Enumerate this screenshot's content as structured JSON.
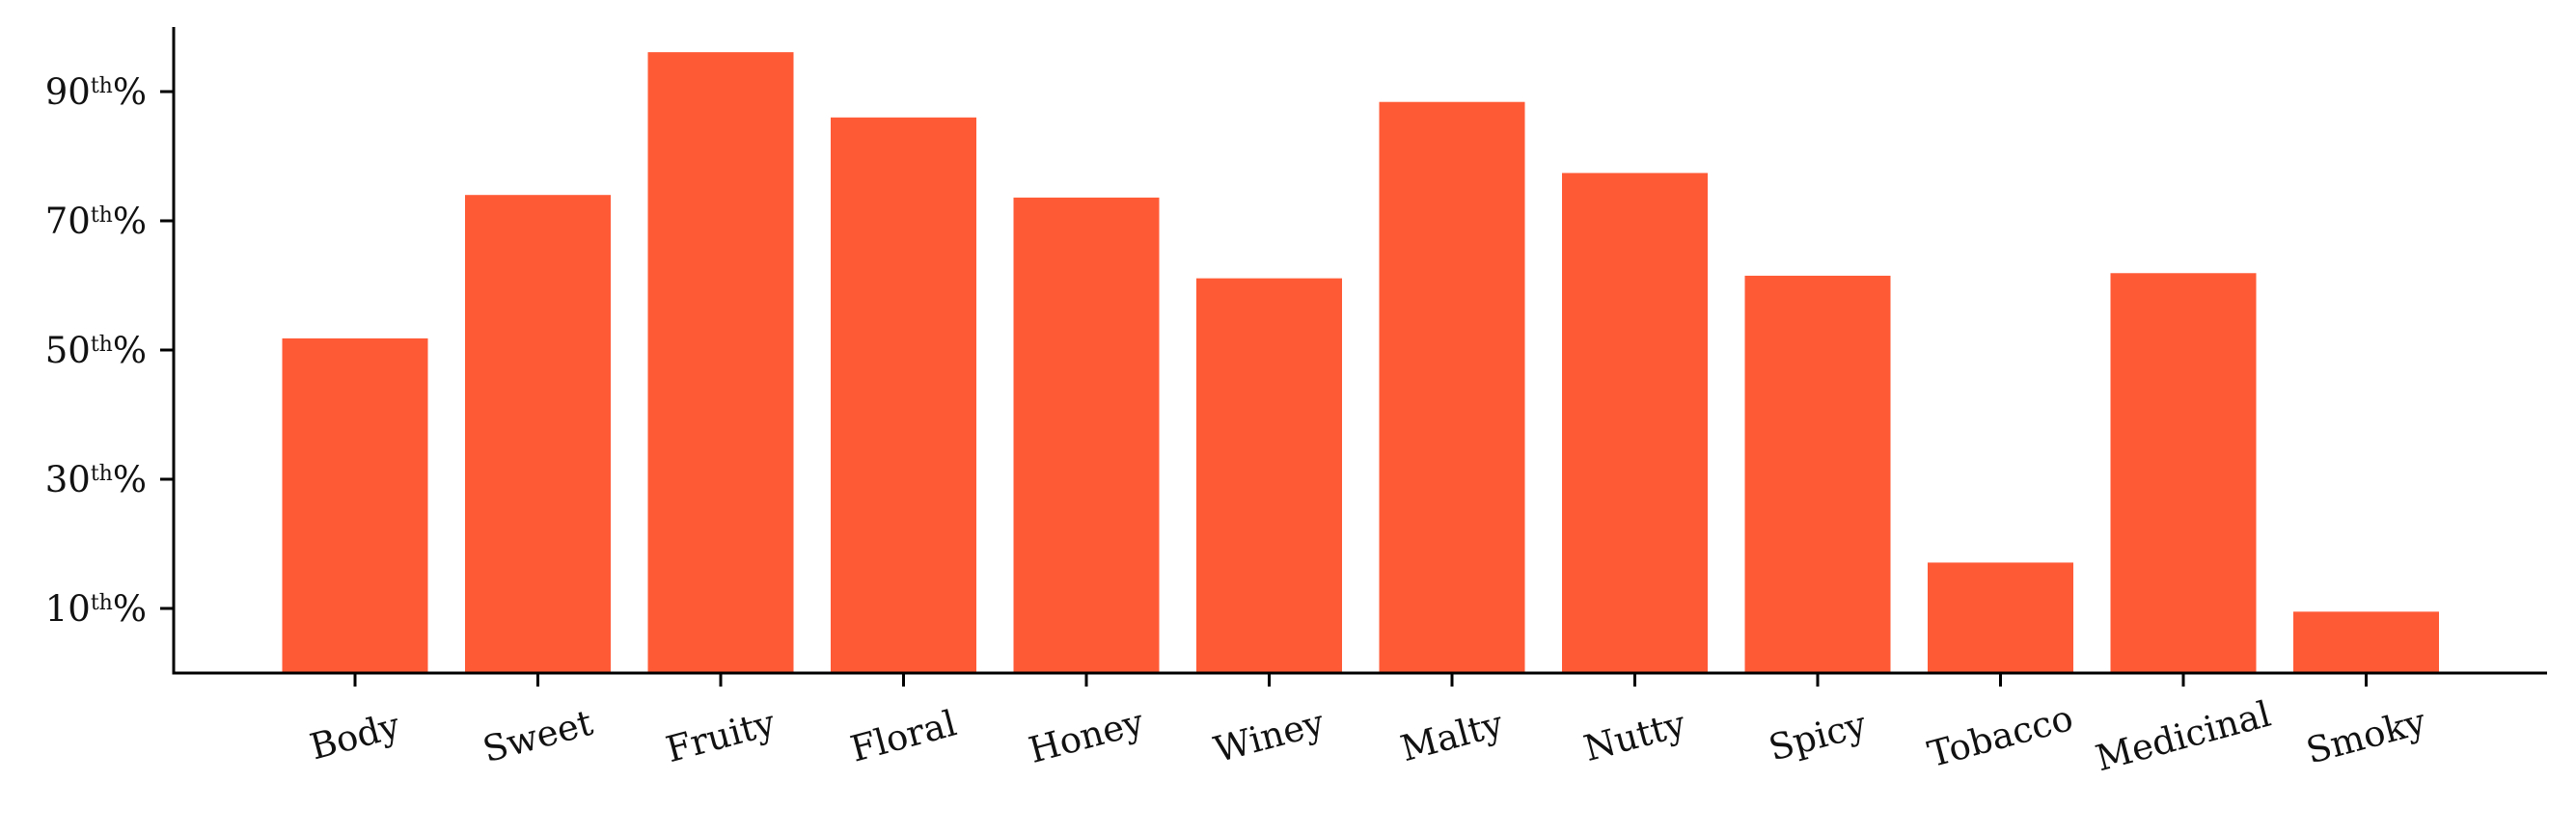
{
  "chart_data": {
    "type": "bar",
    "title": "",
    "xlabel": "",
    "ylabel": "",
    "categories": [
      "Body",
      "Sweet",
      "Fruity",
      "Floral",
      "Honey",
      "Winey",
      "Malty",
      "Nutty",
      "Spicy",
      "Tobacco",
      "Medicinal",
      "Smoky"
    ],
    "values": [
      51.8,
      74.0,
      96.1,
      86.0,
      73.6,
      61.1,
      88.4,
      77.4,
      61.5,
      17.1,
      61.9,
      9.5
    ],
    "ylim": [
      0,
      100
    ],
    "yticks": [
      {
        "value": 10,
        "num": "10",
        "sup": "th",
        "suffix": "%"
      },
      {
        "value": 30,
        "num": "30",
        "sup": "th",
        "suffix": "%"
      },
      {
        "value": 50,
        "num": "50",
        "sup": "th",
        "suffix": "%"
      },
      {
        "value": 70,
        "num": "70",
        "sup": "th",
        "suffix": "%"
      },
      {
        "value": 90,
        "num": "90",
        "sup": "th",
        "suffix": "%"
      }
    ],
    "bar_color": "#ff5a36",
    "grid": false,
    "legend": "none"
  }
}
